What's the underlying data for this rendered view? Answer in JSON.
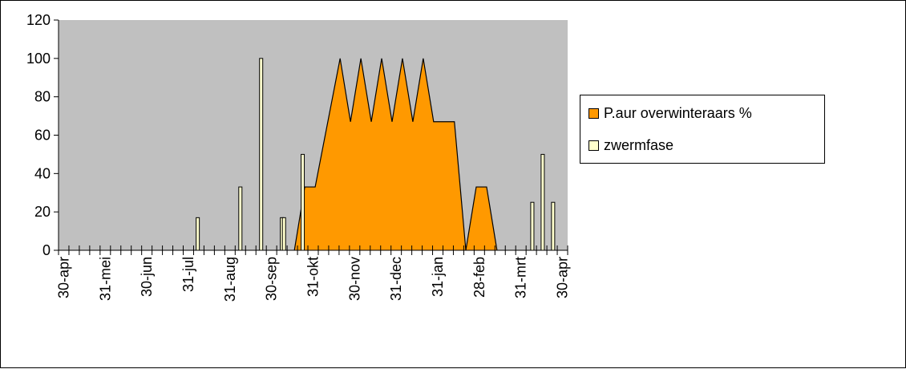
{
  "chart_data": {
    "type": "area",
    "y_ticks": [
      0,
      20,
      40,
      60,
      80,
      100,
      120
    ],
    "ylim": [
      0,
      120
    ],
    "x_tick_labels": [
      "30-apr",
      "31-mei",
      "30-jun",
      "31-jul",
      "31-aug",
      "30-sep",
      "31-okt",
      "30-nov",
      "31-dec",
      "31-jan",
      "28-feb",
      "31-mrt",
      "30-apr"
    ],
    "x_tick_indices": [
      0,
      4,
      8,
      12,
      16,
      20,
      24,
      28,
      32,
      36,
      40,
      44,
      48
    ],
    "x_interval_count": 49,
    "grid": false,
    "legend_position": "right",
    "series": [
      {
        "name": "P.aur overwinteraars %",
        "kind": "area",
        "color": "#FF9900",
        "points": [
          [
            22.7,
            0
          ],
          [
            23.7,
            33
          ],
          [
            24.7,
            33
          ],
          [
            27.1,
            100
          ],
          [
            28.1,
            67
          ],
          [
            29.1,
            100
          ],
          [
            30.1,
            67
          ],
          [
            31.1,
            100
          ],
          [
            32.1,
            67
          ],
          [
            33.1,
            100
          ],
          [
            34.1,
            67
          ],
          [
            35.1,
            100
          ],
          [
            36.1,
            67
          ],
          [
            38.1,
            67
          ],
          [
            39.2,
            0
          ],
          [
            40.2,
            33
          ],
          [
            41.2,
            33
          ],
          [
            42.2,
            0
          ]
        ]
      },
      {
        "name": "zwermfase",
        "kind": "bar",
        "color": "#FFFFCC",
        "points": [
          [
            13.4,
            17
          ],
          [
            17.5,
            33
          ],
          [
            19.5,
            100
          ],
          [
            21.5,
            17
          ],
          [
            21.7,
            17
          ],
          [
            23.5,
            50
          ],
          [
            45.6,
            25
          ],
          [
            46.6,
            50
          ],
          [
            47.6,
            25
          ]
        ]
      }
    ]
  }
}
